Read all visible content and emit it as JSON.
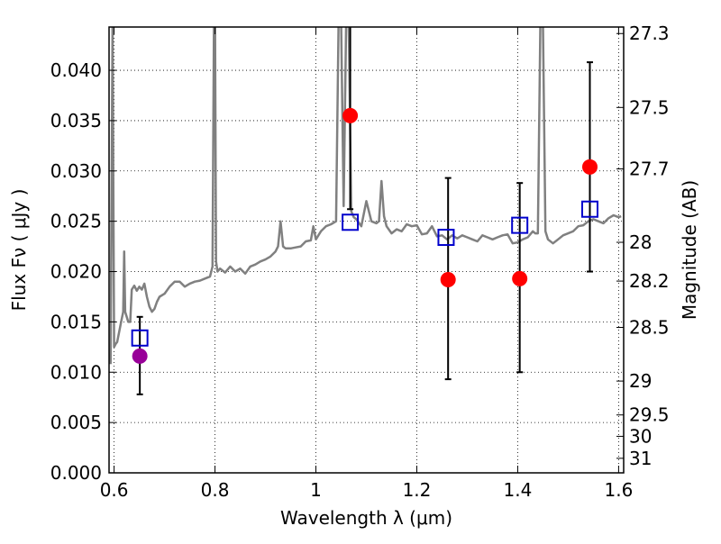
{
  "chart_data": {
    "type": "scatter",
    "xlabel": "Wavelength  λ (μm)",
    "ylabel": "Flux  Fν  ( μJy )",
    "y2label": "Magnitude (AB)",
    "xlim": [
      0.59,
      1.61
    ],
    "ylim": [
      0.0,
      0.0443
    ],
    "grid": true,
    "x_ticks": [
      0.6,
      0.8,
      1.0,
      1.2,
      1.4,
      1.6
    ],
    "x_tick_labels": [
      "0.6",
      "0.8",
      "1",
      "1.2",
      "1.4",
      "1.6"
    ],
    "y_ticks": [
      0.0,
      0.005,
      0.01,
      0.015,
      0.02,
      0.025,
      0.03,
      0.035,
      0.04
    ],
    "y_tick_labels": [
      "0.000",
      "0.005",
      "0.010",
      "0.015",
      "0.020",
      "0.025",
      "0.030",
      "0.035",
      "0.040"
    ],
    "y2_ticks": [
      27.3,
      27.5,
      27.7,
      28,
      28.2,
      28.5,
      29,
      29.5,
      30,
      31
    ],
    "y2_tick_labels": [
      "27.3",
      "27.5",
      "27.7",
      "28",
      "28.2",
      "28.5",
      "29",
      "29.5",
      "30",
      "31"
    ],
    "series": [
      {
        "kind": "line",
        "color": "#808080",
        "x": [
          0.593,
          0.597,
          0.6,
          0.603,
          0.606,
          0.61,
          0.614,
          0.618,
          0.62,
          0.622,
          0.625,
          0.628,
          0.632,
          0.635,
          0.64,
          0.645,
          0.65,
          0.655,
          0.66,
          0.665,
          0.67,
          0.675,
          0.68,
          0.685,
          0.69,
          0.7,
          0.71,
          0.72,
          0.73,
          0.74,
          0.75,
          0.76,
          0.77,
          0.78,
          0.79,
          0.795,
          0.798,
          0.8,
          0.802,
          0.805,
          0.81,
          0.82,
          0.83,
          0.84,
          0.85,
          0.86,
          0.87,
          0.88,
          0.89,
          0.9,
          0.91,
          0.92,
          0.925,
          0.93,
          0.935,
          0.94,
          0.95,
          0.96,
          0.97,
          0.98,
          0.99,
          0.995,
          1.0,
          1.005,
          1.01,
          1.02,
          1.03,
          1.04,
          1.045,
          1.05,
          1.055,
          1.06,
          1.065,
          1.07,
          1.075,
          1.08,
          1.09,
          1.1,
          1.11,
          1.12,
          1.125,
          1.13,
          1.135,
          1.14,
          1.15,
          1.16,
          1.17,
          1.18,
          1.19,
          1.2,
          1.21,
          1.22,
          1.23,
          1.24,
          1.25,
          1.26,
          1.27,
          1.28,
          1.29,
          1.3,
          1.31,
          1.32,
          1.33,
          1.34,
          1.35,
          1.36,
          1.37,
          1.38,
          1.39,
          1.4,
          1.41,
          1.42,
          1.43,
          1.435,
          1.44,
          1.445,
          1.45,
          1.455,
          1.46,
          1.47,
          1.48,
          1.49,
          1.5,
          1.51,
          1.52,
          1.53,
          1.54,
          1.55,
          1.56,
          1.57,
          1.58,
          1.59,
          1.6,
          1.605
        ],
        "y": [
          0.0108,
          0.0449,
          0.0125,
          0.0128,
          0.013,
          0.014,
          0.015,
          0.016,
          0.022,
          0.016,
          0.0155,
          0.015,
          0.015,
          0.0182,
          0.0186,
          0.0181,
          0.0185,
          0.0182,
          0.0188,
          0.0175,
          0.0165,
          0.016,
          0.0163,
          0.017,
          0.0175,
          0.0178,
          0.0185,
          0.019,
          0.019,
          0.0185,
          0.0188,
          0.019,
          0.0191,
          0.0193,
          0.0195,
          0.0205,
          0.0449,
          0.0449,
          0.021,
          0.02,
          0.0203,
          0.0199,
          0.0205,
          0.02,
          0.0203,
          0.0198,
          0.0205,
          0.0207,
          0.021,
          0.0212,
          0.0215,
          0.022,
          0.0225,
          0.025,
          0.0225,
          0.0223,
          0.0223,
          0.0224,
          0.0225,
          0.023,
          0.0231,
          0.0245,
          0.0232,
          0.0236,
          0.024,
          0.0245,
          0.0247,
          0.025,
          0.0449,
          0.0449,
          0.0265,
          0.0449,
          0.0449,
          0.026,
          0.0254,
          0.0252,
          0.0245,
          0.027,
          0.025,
          0.0248,
          0.025,
          0.029,
          0.0255,
          0.0245,
          0.0238,
          0.0242,
          0.024,
          0.0247,
          0.0245,
          0.0246,
          0.0237,
          0.0238,
          0.0245,
          0.0235,
          0.0236,
          0.0232,
          0.0236,
          0.0233,
          0.0236,
          0.0234,
          0.0232,
          0.023,
          0.0236,
          0.0234,
          0.0232,
          0.0234,
          0.0236,
          0.0237,
          0.0228,
          0.0229,
          0.0232,
          0.0234,
          0.024,
          0.0238,
          0.0238,
          0.0449,
          0.0449,
          0.024,
          0.0232,
          0.0228,
          0.0232,
          0.0236,
          0.0238,
          0.024,
          0.0245,
          0.0246,
          0.025,
          0.0252,
          0.025,
          0.0248,
          0.0253,
          0.0256,
          0.0254,
          0.0255
        ]
      },
      {
        "kind": "points",
        "marker": "circle",
        "color": "#ff0000",
        "x": [
          1.068,
          1.262,
          1.404,
          1.543
        ],
        "y": [
          0.0355,
          0.0192,
          0.0193,
          0.0304
        ],
        "err_low": [
          0.0262,
          0.0093,
          0.01,
          0.02
        ],
        "err_high": [
          0.0449,
          0.0293,
          0.0288,
          0.0408
        ]
      },
      {
        "kind": "points",
        "marker": "circle",
        "color": "#990099",
        "x": [
          0.651
        ],
        "y": [
          0.0116
        ],
        "err_low": [
          0.0078
        ],
        "err_high": [
          0.0155
        ]
      },
      {
        "kind": "points",
        "marker": "open-square",
        "color": "#0000cc",
        "x": [
          0.651,
          1.068,
          1.258,
          1.404,
          1.543
        ],
        "y": [
          0.0134,
          0.0249,
          0.0234,
          0.0246,
          0.0262
        ]
      }
    ]
  }
}
